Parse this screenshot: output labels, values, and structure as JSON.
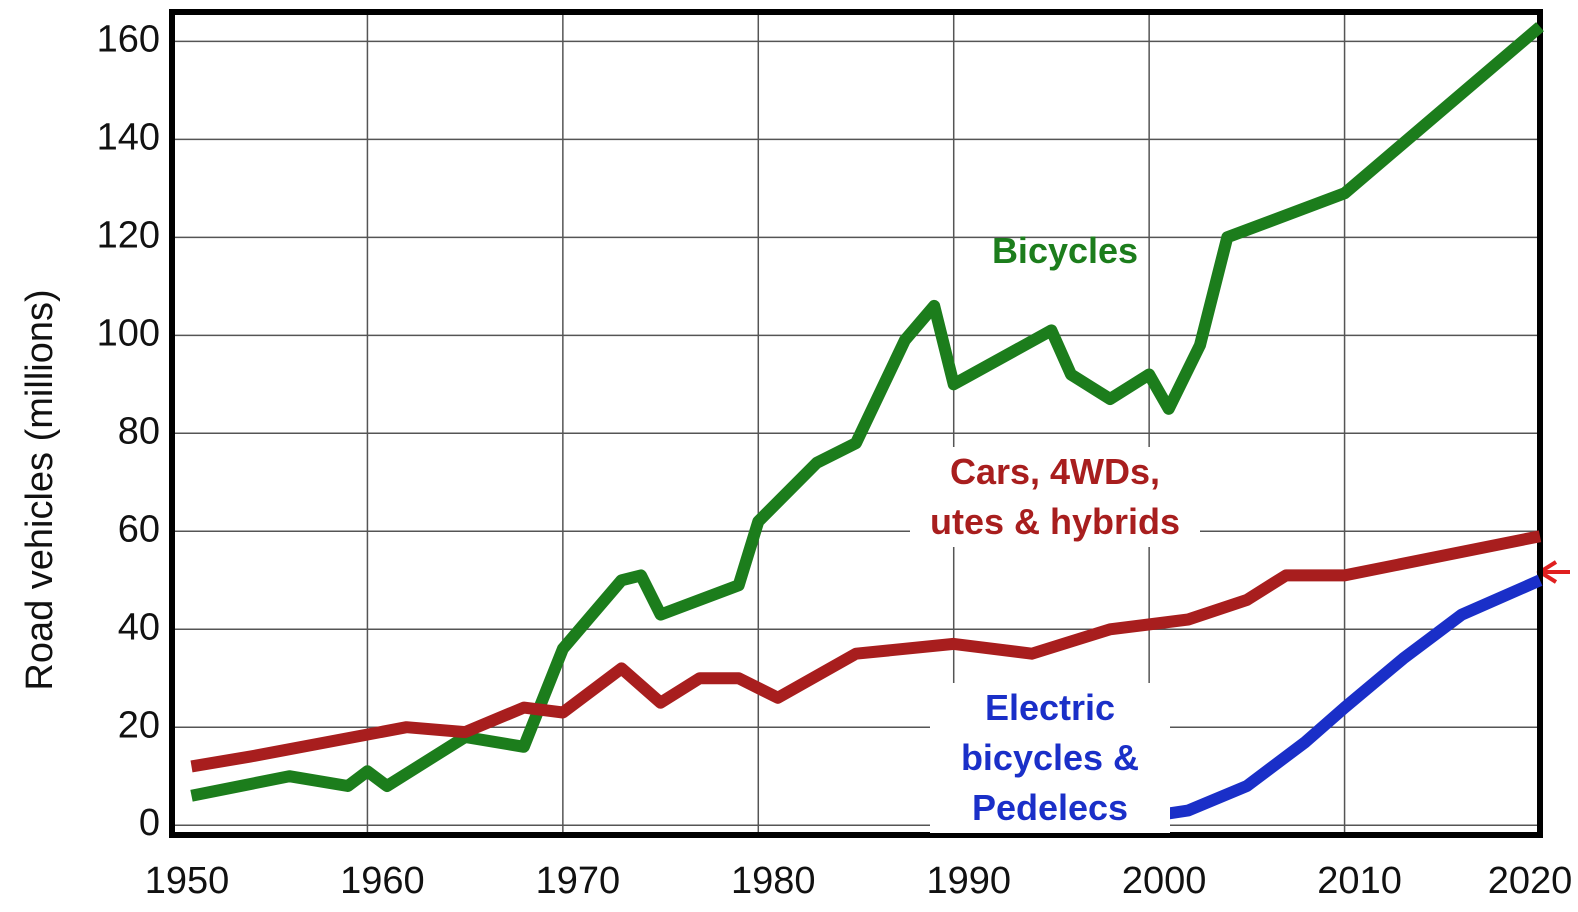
{
  "chart_data": {
    "type": "line",
    "y_label": "Road vehicles (millions)",
    "xlim": [
      1950,
      2020
    ],
    "xticks": [
      1950,
      1960,
      1970,
      1980,
      1990,
      2000,
      2010,
      2020
    ],
    "ylim": [
      -2,
      166
    ],
    "yticks": [
      0,
      20,
      40,
      60,
      80,
      100,
      120,
      140,
      160
    ],
    "grid": true,
    "series": [
      {
        "name": "Bicycles",
        "color": "#1c7d1c",
        "x": [
          1951,
          1956,
          1959,
          1960,
          1961,
          1965,
          1968,
          1970,
          1973,
          1974,
          1975,
          1979,
          1980,
          1983,
          1985,
          1987.5,
          1989,
          1990,
          1995,
          1996,
          1998,
          2000,
          2001,
          2002.6,
          2004,
          2010,
          2020
        ],
        "values": [
          6,
          10,
          8,
          11,
          8,
          18,
          16,
          36,
          50,
          51,
          43,
          49,
          62,
          74,
          78,
          99,
          106,
          90,
          101,
          92,
          87,
          92,
          85,
          98,
          120,
          129,
          163
        ]
      },
      {
        "name": "Cars, 4WDs, utes & hybrids",
        "color": "#a81e1e",
        "x": [
          1951,
          1954,
          1962,
          1965,
          1968,
          1970,
          1973,
          1975,
          1977,
          1979,
          1981,
          1985,
          1990,
          1994,
          1998,
          2002,
          2005,
          2007,
          2010,
          2020
        ],
        "values": [
          12,
          14,
          20,
          19,
          24,
          23,
          32,
          25,
          30,
          30,
          26,
          35,
          37,
          35,
          40,
          42,
          46,
          51,
          51,
          59
        ]
      },
      {
        "name": "Electric bicycles & Pedelecs",
        "color": "#1a2fc8",
        "x": [
          1997,
          2002,
          2005,
          2008,
          2010,
          2013,
          2016,
          2020
        ],
        "values": [
          0,
          3,
          8,
          17,
          24,
          34,
          43,
          50
        ]
      }
    ]
  }
}
